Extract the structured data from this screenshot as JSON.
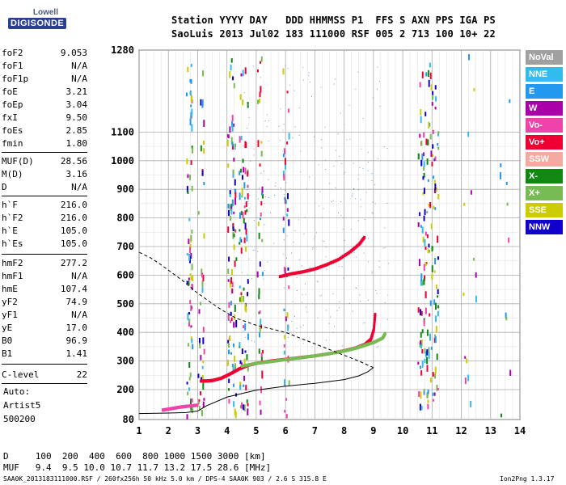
{
  "logo": {
    "line1": "Lowell",
    "line2": "DIGISONDE"
  },
  "header": {
    "labels": "Station YYYY DAY   DDD HHMMSS P1  FFS S AXN PPS IGA PS",
    "values": "SaoLuis 2013 Jul02 183 111000 RSF 005 2 713 100 10+ 22"
  },
  "params": [
    {
      "k": "foF2",
      "v": "9.053"
    },
    {
      "k": "foF1",
      "v": "N/A"
    },
    {
      "k": "foF1p",
      "v": "N/A"
    },
    {
      "k": "foE",
      "v": "3.21"
    },
    {
      "k": "foEp",
      "v": "3.04"
    },
    {
      "k": "fxI",
      "v": "9.50"
    },
    {
      "k": "foEs",
      "v": "2.85"
    },
    {
      "k": "fmin",
      "v": "1.80"
    }
  ],
  "params2": [
    {
      "k": "MUF(D)",
      "v": "28.56"
    },
    {
      "k": "M(D)",
      "v": "3.16"
    },
    {
      "k": "D",
      "v": "N/A"
    }
  ],
  "params3": [
    {
      "k": "h`F",
      "v": "216.0"
    },
    {
      "k": "h`F2",
      "v": "216.0"
    },
    {
      "k": "h`E",
      "v": "105.0"
    },
    {
      "k": "h`Es",
      "v": "105.0"
    }
  ],
  "params4": [
    {
      "k": "hmF2",
      "v": "277.2"
    },
    {
      "k": "hmF1",
      "v": "N/A"
    },
    {
      "k": "hmE",
      "v": "107.4"
    },
    {
      "k": "yF2",
      "v": "74.9"
    },
    {
      "k": "yF1",
      "v": "N/A"
    },
    {
      "k": "yE",
      "v": "17.0"
    },
    {
      "k": "B0",
      "v": "96.9"
    },
    {
      "k": "B1",
      "v": "1.41"
    }
  ],
  "clevel": {
    "k": "C-level",
    "v": "22"
  },
  "auto": {
    "line1": "Auto:",
    "line2": "Artist5",
    "line3": "500200"
  },
  "legend": [
    {
      "label": "NoVal",
      "color": "#a0a0a0"
    },
    {
      "label": "NNE",
      "color": "#33bbee"
    },
    {
      "label": "E",
      "color": "#2299ee"
    },
    {
      "label": "W",
      "color": "#aa00aa"
    },
    {
      "label": "Vo-",
      "color": "#ee44aa"
    },
    {
      "label": "Vo+",
      "color": "#ee0033"
    },
    {
      "label": "SSW",
      "color": "#f4aaa0"
    },
    {
      "label": "X-",
      "color": "#118811"
    },
    {
      "label": "X+",
      "color": "#77bb55"
    },
    {
      "label": "SSE",
      "color": "#cccc00"
    },
    {
      "label": "NNW",
      "color": "#1100cc"
    }
  ],
  "muf_table": {
    "d_line": "D     100  200  400  600  800 1000 1500 3000 [km]",
    "muf_line": "MUF   9.4  9.5 10.0 10.7 11.7 13.2 17.5 28.6 [MHz]"
  },
  "footer": "SAA0K_2013183111000.RSF / 260fx256h 50 kHz 5.0 km / DPS-4 SAA0K 903 / 2.6 S 315.8 E",
  "version": "Ion2Png 1.3.17",
  "chart_data": {
    "type": "scatter",
    "xlim": [
      1,
      14
    ],
    "ylim": [
      80,
      1280
    ],
    "x_ticks": [
      "1",
      "2",
      "3",
      "4",
      "5",
      "6",
      "7",
      "8",
      "9",
      "10",
      "11",
      "12",
      "13",
      "14"
    ],
    "y_ticks": [
      "80",
      "200",
      "300",
      "400",
      "500",
      "600",
      "700",
      "800",
      "900",
      "1000",
      "1100",
      "1280"
    ],
    "grid": true,
    "series": [
      {
        "color": "#ee0033",
        "x": [
          3.1,
          3.3,
          3.5,
          3.8,
          4.1,
          4.4,
          4.7,
          5.0,
          5.5,
          6.0,
          6.5,
          7.0,
          7.5,
          8.0,
          8.4,
          8.7,
          8.9,
          9.0,
          9.05
        ],
        "y": [
          230,
          230,
          232,
          240,
          255,
          272,
          285,
          292,
          300,
          306,
          312,
          318,
          326,
          336,
          346,
          358,
          376,
          410,
          470
        ]
      },
      {
        "color": "#ee0033",
        "x": [
          5.8,
          6.2,
          6.6,
          7.0,
          7.4,
          7.8,
          8.2,
          8.5,
          8.7
        ],
        "y": [
          595,
          605,
          612,
          622,
          637,
          655,
          682,
          708,
          735
        ]
      },
      {
        "color": "#77bb55",
        "x": [
          4.5,
          5.0,
          5.5,
          6.0,
          6.5,
          7.0,
          7.5,
          8.0,
          8.4,
          8.7,
          9.0,
          9.3,
          9.4
        ],
        "y": [
          282,
          292,
          298,
          305,
          311,
          318,
          326,
          335,
          345,
          355,
          365,
          380,
          398
        ]
      },
      {
        "color": "#ee44aa",
        "x": [
          1.8,
          2.0,
          2.2,
          2.4,
          2.6,
          2.8,
          3.0
        ],
        "y": [
          118,
          122,
          126,
          130,
          133,
          135,
          138
        ]
      }
    ],
    "model_profile": {
      "color": "#000000",
      "x": [
        1.0,
        2.0,
        2.6,
        3.0,
        3.3,
        4.0,
        5.0,
        6.0,
        7.0,
        8.0,
        8.5,
        8.8,
        9.0
      ],
      "y": [
        104,
        106,
        108,
        114,
        135,
        170,
        198,
        212,
        222,
        235,
        248,
        262,
        277
      ]
    },
    "model_topside": {
      "color": "#000000",
      "x": [
        9.0,
        8.5,
        8.0,
        7.0,
        6.0,
        5.0,
        4.3,
        3.8,
        3.3,
        2.9,
        2.5,
        2.1,
        1.7,
        1.4,
        1.0
      ],
      "y": [
        277,
        300,
        320,
        360,
        400,
        425,
        450,
        480,
        515,
        545,
        580,
        610,
        640,
        660,
        680
      ]
    }
  }
}
